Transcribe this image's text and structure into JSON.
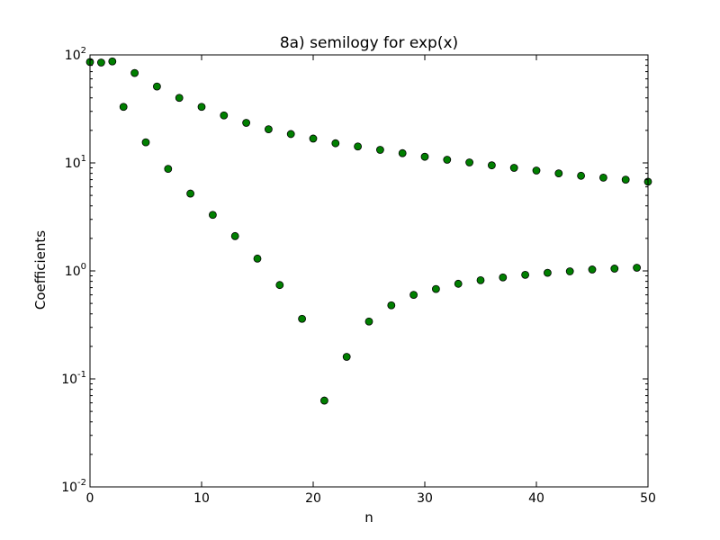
{
  "chart_data": {
    "type": "scatter",
    "title": "8a) semilogy for exp(x)",
    "xlabel": "n",
    "ylabel": "Coefficients",
    "xlim": [
      0,
      50
    ],
    "ylim": [
      0.01,
      100
    ],
    "yscale": "log",
    "grid": false,
    "marker_color": "#007f00",
    "marker_edge": "#000000",
    "x_ticks": [
      {
        "value": 0,
        "label": "0"
      },
      {
        "value": 10,
        "label": "10"
      },
      {
        "value": 20,
        "label": "20"
      },
      {
        "value": 30,
        "label": "30"
      },
      {
        "value": 40,
        "label": "40"
      },
      {
        "value": 50,
        "label": "50"
      }
    ],
    "y_ticks": [
      {
        "value": 0.01,
        "base": "10",
        "exp": "-2"
      },
      {
        "value": 0.1,
        "base": "10",
        "exp": "-1"
      },
      {
        "value": 1,
        "base": "10",
        "exp": "0"
      },
      {
        "value": 10,
        "base": "10",
        "exp": "1"
      },
      {
        "value": 100,
        "base": "10",
        "exp": "2"
      }
    ],
    "points": [
      [
        0,
        86
      ],
      [
        1,
        85
      ],
      [
        2,
        87
      ],
      [
        3,
        33
      ],
      [
        4,
        68
      ],
      [
        5,
        15.5
      ],
      [
        6,
        51
      ],
      [
        7,
        8.8
      ],
      [
        8,
        40
      ],
      [
        9,
        5.2
      ],
      [
        10,
        33
      ],
      [
        11,
        3.3
      ],
      [
        12,
        27.5
      ],
      [
        13,
        2.1
      ],
      [
        14,
        23.5
      ],
      [
        15,
        1.3
      ],
      [
        16,
        20.5
      ],
      [
        17,
        0.74
      ],
      [
        18,
        18.5
      ],
      [
        19,
        0.36
      ],
      [
        20,
        16.8
      ],
      [
        21,
        0.063
      ],
      [
        22,
        15.2
      ],
      [
        23,
        0.16
      ],
      [
        24,
        14.2
      ],
      [
        25,
        0.34
      ],
      [
        26,
        13.2
      ],
      [
        27,
        0.48
      ],
      [
        28,
        12.3
      ],
      [
        29,
        0.6
      ],
      [
        30,
        11.4
      ],
      [
        31,
        0.68
      ],
      [
        32,
        10.7
      ],
      [
        33,
        0.76
      ],
      [
        34,
        10.1
      ],
      [
        35,
        0.82
      ],
      [
        36,
        9.5
      ],
      [
        37,
        0.87
      ],
      [
        38,
        9.0
      ],
      [
        39,
        0.92
      ],
      [
        40,
        8.5
      ],
      [
        41,
        0.96
      ],
      [
        42,
        8.0
      ],
      [
        43,
        0.99
      ],
      [
        44,
        7.6
      ],
      [
        45,
        1.03
      ],
      [
        46,
        7.3
      ],
      [
        47,
        1.05
      ],
      [
        48,
        7.0
      ],
      [
        49,
        1.07
      ],
      [
        50,
        6.7
      ]
    ]
  }
}
